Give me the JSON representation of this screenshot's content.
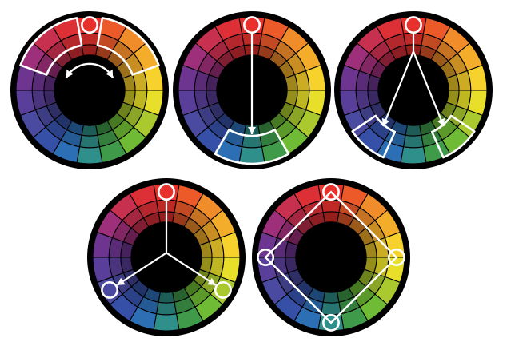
{
  "wheel": {
    "background": "#000000",
    "hues": [
      "#e8312d",
      "#ec5a2a",
      "#f08c2a",
      "#f4ad2a",
      "#f7d22c",
      "#e8df2a",
      "#aac92e",
      "#6fbb35",
      "#3f9a4a",
      "#2f8f8a",
      "#2d6fb5",
      "#3550a6",
      "#4a4aa0",
      "#5a3f9a",
      "#6e3590",
      "#9e2f7a",
      "#c8304f",
      "#dc2f36"
    ]
  },
  "schemes": [
    {
      "name": "analogous",
      "base_hue": 0,
      "accent": "#ffffff"
    },
    {
      "name": "complementary",
      "base_hue": 0,
      "accent": "#ffffff"
    },
    {
      "name": "split-complementary",
      "base_hue": 0,
      "accent": "#ffffff"
    },
    {
      "name": "triadic",
      "base_hue": 0,
      "accent": "#ffffff"
    },
    {
      "name": "tetradic-square",
      "base_hue": 0,
      "accent": "#ffffff"
    }
  ]
}
